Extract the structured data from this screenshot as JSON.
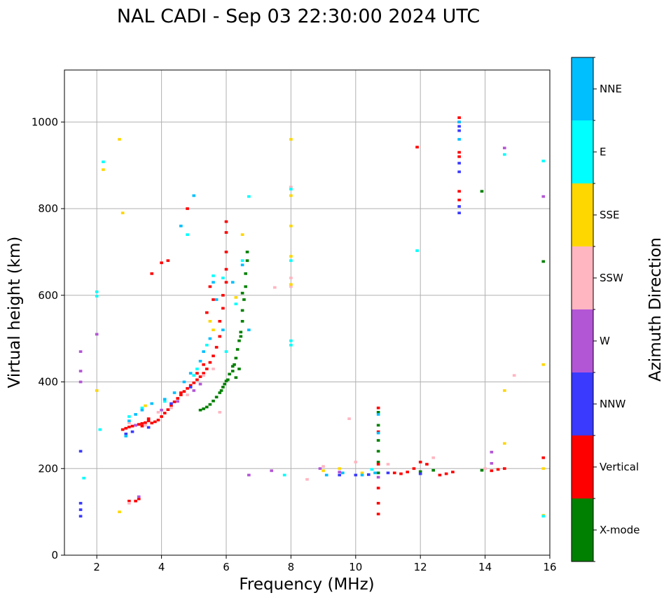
{
  "chart_data": {
    "type": "scatter",
    "title": "NAL CADI - Sep 03 22:30:00 2024 UTC",
    "xlabel": "Frequency (MHz)",
    "ylabel": "Virtual height (km)",
    "xlim": [
      1,
      16
    ],
    "ylim": [
      0,
      1120
    ],
    "xticks": [
      2,
      4,
      6,
      8,
      10,
      12,
      14,
      16
    ],
    "yticks": [
      0,
      200,
      400,
      600,
      800,
      1000
    ],
    "grid": true,
    "colorbar": {
      "label": "Azimuth Direction",
      "categories": [
        {
          "name": "X-mode",
          "color": "#008000"
        },
        {
          "name": "Vertical",
          "color": "#ff0000"
        },
        {
          "name": "NNW",
          "color": "#3a3aff"
        },
        {
          "name": "W",
          "color": "#b356d6"
        },
        {
          "name": "SSW",
          "color": "#ffb6c1"
        },
        {
          "name": "SSE",
          "color": "#ffd700"
        },
        {
          "name": "E",
          "color": "#00ffff"
        },
        {
          "name": "NNE",
          "color": "#00bfff"
        }
      ]
    },
    "marker_size_mhz": 0.1,
    "marker_size_km": 6,
    "series": [
      {
        "name": "X-mode",
        "points": [
          [
            5.2,
            335
          ],
          [
            5.3,
            338
          ],
          [
            5.4,
            342
          ],
          [
            5.5,
            348
          ],
          [
            5.6,
            356
          ],
          [
            5.7,
            365
          ],
          [
            5.8,
            375
          ],
          [
            5.9,
            388
          ],
          [
            6.0,
            402
          ],
          [
            6.1,
            418
          ],
          [
            6.2,
            436
          ],
          [
            6.3,
            455
          ],
          [
            6.35,
            475
          ],
          [
            6.4,
            495
          ],
          [
            6.45,
            515
          ],
          [
            6.5,
            540
          ],
          [
            6.5,
            565
          ],
          [
            6.55,
            590
          ],
          [
            6.6,
            620
          ],
          [
            6.6,
            650
          ],
          [
            6.65,
            680
          ],
          [
            6.65,
            700
          ],
          [
            6.4,
            430
          ],
          [
            6.3,
            410
          ],
          [
            6.2,
            425
          ],
          [
            5.95,
            395
          ],
          [
            5.85,
            380
          ],
          [
            6.05,
            405
          ],
          [
            6.25,
            440
          ],
          [
            6.45,
            505
          ],
          [
            6.5,
            605
          ],
          [
            10.7,
            190
          ],
          [
            10.7,
            215
          ],
          [
            10.7,
            240
          ],
          [
            10.7,
            265
          ],
          [
            10.7,
            300
          ],
          [
            10.7,
            330
          ],
          [
            12.0,
            193
          ],
          [
            12.4,
            196
          ],
          [
            13.9,
            840
          ],
          [
            15.8,
            678
          ],
          [
            13.9,
            196
          ]
        ]
      },
      {
        "name": "Vertical",
        "points": [
          [
            2.8,
            290
          ],
          [
            2.9,
            293
          ],
          [
            3.0,
            296
          ],
          [
            3.1,
            298
          ],
          [
            3.2,
            300
          ],
          [
            3.3,
            302
          ],
          [
            3.4,
            304
          ],
          [
            3.5,
            306
          ],
          [
            3.6,
            310
          ],
          [
            3.7,
            305
          ],
          [
            3.8,
            308
          ],
          [
            3.9,
            312
          ],
          [
            4.0,
            320
          ],
          [
            4.1,
            328
          ],
          [
            4.2,
            336
          ],
          [
            4.3,
            345
          ],
          [
            4.4,
            354
          ],
          [
            4.5,
            362
          ],
          [
            4.6,
            370
          ],
          [
            4.7,
            378
          ],
          [
            4.8,
            385
          ],
          [
            4.9,
            392
          ],
          [
            5.0,
            398
          ],
          [
            5.1,
            405
          ],
          [
            5.2,
            412
          ],
          [
            5.3,
            420
          ],
          [
            5.4,
            430
          ],
          [
            5.5,
            445
          ],
          [
            5.6,
            460
          ],
          [
            5.7,
            480
          ],
          [
            5.8,
            505
          ],
          [
            5.8,
            540
          ],
          [
            5.9,
            570
          ],
          [
            5.9,
            600
          ],
          [
            6.0,
            630
          ],
          [
            6.0,
            660
          ],
          [
            6.0,
            700
          ],
          [
            6.0,
            745
          ],
          [
            6.0,
            770
          ],
          [
            5.5,
            620
          ],
          [
            5.6,
            590
          ],
          [
            5.4,
            560
          ],
          [
            4.8,
            800
          ],
          [
            4.2,
            680
          ],
          [
            4.0,
            675
          ],
          [
            3.7,
            650
          ],
          [
            3.2,
            125
          ],
          [
            3.0,
            125
          ],
          [
            3.3,
            130
          ],
          [
            10.7,
            95
          ],
          [
            10.7,
            120
          ],
          [
            10.7,
            155
          ],
          [
            10.7,
            210
          ],
          [
            10.7,
            285
          ],
          [
            10.7,
            340
          ],
          [
            11.2,
            190
          ],
          [
            11.4,
            188
          ],
          [
            11.6,
            192
          ],
          [
            11.8,
            200
          ],
          [
            12.0,
            215
          ],
          [
            12.2,
            210
          ],
          [
            12.6,
            185
          ],
          [
            12.8,
            188
          ],
          [
            13.0,
            192
          ],
          [
            13.2,
            820
          ],
          [
            13.2,
            840
          ],
          [
            13.2,
            920
          ],
          [
            13.2,
            930
          ],
          [
            13.2,
            1000
          ],
          [
            13.2,
            1010
          ],
          [
            14.2,
            195
          ],
          [
            14.4,
            198
          ],
          [
            14.6,
            200
          ],
          [
            11.9,
            942
          ],
          [
            15.8,
            225
          ],
          [
            3.6,
            315
          ],
          [
            4.6,
            375
          ],
          [
            5.1,
            420
          ],
          [
            3.4,
            298
          ],
          [
            5.3,
            440
          ]
        ]
      },
      {
        "name": "NNW",
        "points": [
          [
            1.5,
            240
          ],
          [
            1.5,
            120
          ],
          [
            1.5,
            105
          ],
          [
            1.5,
            90
          ],
          [
            2.9,
            280
          ],
          [
            3.1,
            285
          ],
          [
            3.6,
            295
          ],
          [
            4.3,
            350
          ],
          [
            4.9,
            388
          ],
          [
            10.0,
            185
          ],
          [
            10.4,
            186
          ],
          [
            11.0,
            190
          ],
          [
            12.0,
            188
          ],
          [
            13.2,
            885
          ],
          [
            13.2,
            905
          ],
          [
            13.2,
            980
          ],
          [
            13.2,
            990
          ],
          [
            13.2,
            790
          ],
          [
            13.2,
            805
          ],
          [
            9.5,
            185
          ]
        ]
      },
      {
        "name": "W",
        "points": [
          [
            1.5,
            425
          ],
          [
            1.5,
            470
          ],
          [
            1.5,
            400
          ],
          [
            2.0,
            510
          ],
          [
            3.2,
            300
          ],
          [
            4.0,
            335
          ],
          [
            4.5,
            355
          ],
          [
            5.0,
            380
          ],
          [
            5.2,
            395
          ],
          [
            6.7,
            185
          ],
          [
            7.4,
            195
          ],
          [
            8.9,
            200
          ],
          [
            9.5,
            192
          ],
          [
            10.7,
            180
          ],
          [
            14.2,
            238
          ],
          [
            14.2,
            212
          ],
          [
            14.6,
            940
          ],
          [
            15.8,
            828
          ],
          [
            3.3,
            135
          ]
        ]
      },
      {
        "name": "SSW",
        "points": [
          [
            3.0,
            305
          ],
          [
            3.5,
            300
          ],
          [
            3.9,
            330
          ],
          [
            4.3,
            340
          ],
          [
            4.8,
            370
          ],
          [
            5.3,
            415
          ],
          [
            5.6,
            430
          ],
          [
            8.0,
            620
          ],
          [
            8.0,
            640
          ],
          [
            8.0,
            850
          ],
          [
            8.5,
            175
          ],
          [
            9.0,
            205
          ],
          [
            9.8,
            315
          ],
          [
            10.0,
            215
          ],
          [
            11.0,
            210
          ],
          [
            12.4,
            225
          ],
          [
            14.0,
            200
          ],
          [
            14.9,
            415
          ],
          [
            7.5,
            618
          ],
          [
            5.8,
            330
          ],
          [
            3.0,
            120
          ]
        ]
      },
      {
        "name": "SSE",
        "points": [
          [
            2.0,
            380
          ],
          [
            2.2,
            890
          ],
          [
            2.7,
            960
          ],
          [
            2.8,
            790
          ],
          [
            3.5,
            345
          ],
          [
            5.5,
            540
          ],
          [
            5.6,
            520
          ],
          [
            6.3,
            595
          ],
          [
            6.5,
            740
          ],
          [
            8.0,
            625
          ],
          [
            8.0,
            760
          ],
          [
            8.0,
            830
          ],
          [
            8.0,
            960
          ],
          [
            8.0,
            690
          ],
          [
            9.0,
            195
          ],
          [
            9.5,
            200
          ],
          [
            10.2,
            190
          ],
          [
            14.6,
            258
          ],
          [
            14.6,
            380
          ],
          [
            15.8,
            440
          ],
          [
            15.8,
            92
          ],
          [
            15.8,
            200
          ],
          [
            2.7,
            100
          ]
        ]
      },
      {
        "name": "E",
        "points": [
          [
            2.0,
            608
          ],
          [
            2.0,
            598
          ],
          [
            2.2,
            908
          ],
          [
            3.0,
            320
          ],
          [
            3.4,
            340
          ],
          [
            4.1,
            355
          ],
          [
            4.8,
            740
          ],
          [
            5.0,
            415
          ],
          [
            5.1,
            430
          ],
          [
            5.4,
            485
          ],
          [
            5.6,
            645
          ],
          [
            5.9,
            640
          ],
          [
            6.0,
            470
          ],
          [
            6.3,
            580
          ],
          [
            6.5,
            680
          ],
          [
            6.7,
            828
          ],
          [
            7.8,
            185
          ],
          [
            8.0,
            495
          ],
          [
            8.0,
            485
          ],
          [
            8.0,
            680
          ],
          [
            8.0,
            845
          ],
          [
            10.5,
            198
          ],
          [
            11.9,
            703
          ],
          [
            14.6,
            925
          ],
          [
            15.8,
            910
          ],
          [
            15.8,
            90
          ],
          [
            1.6,
            178
          ],
          [
            2.1,
            290
          ]
        ]
      },
      {
        "name": "NNE",
        "points": [
          [
            2.9,
            275
          ],
          [
            3.0,
            310
          ],
          [
            3.2,
            325
          ],
          [
            3.4,
            335
          ],
          [
            3.7,
            350
          ],
          [
            4.1,
            360
          ],
          [
            4.4,
            375
          ],
          [
            4.7,
            400
          ],
          [
            4.9,
            420
          ],
          [
            5.2,
            448
          ],
          [
            5.3,
            470
          ],
          [
            5.5,
            500
          ],
          [
            5.6,
            630
          ],
          [
            5.7,
            590
          ],
          [
            5.9,
            520
          ],
          [
            6.2,
            630
          ],
          [
            6.5,
            670
          ],
          [
            6.7,
            520
          ],
          [
            9.1,
            185
          ],
          [
            9.6,
            190
          ],
          [
            10.2,
            185
          ],
          [
            10.7,
            282
          ],
          [
            10.7,
            325
          ],
          [
            10.6,
            190
          ],
          [
            13.2,
            960
          ],
          [
            13.2,
            1000
          ],
          [
            4.6,
            760
          ],
          [
            5.0,
            830
          ]
        ]
      }
    ]
  }
}
